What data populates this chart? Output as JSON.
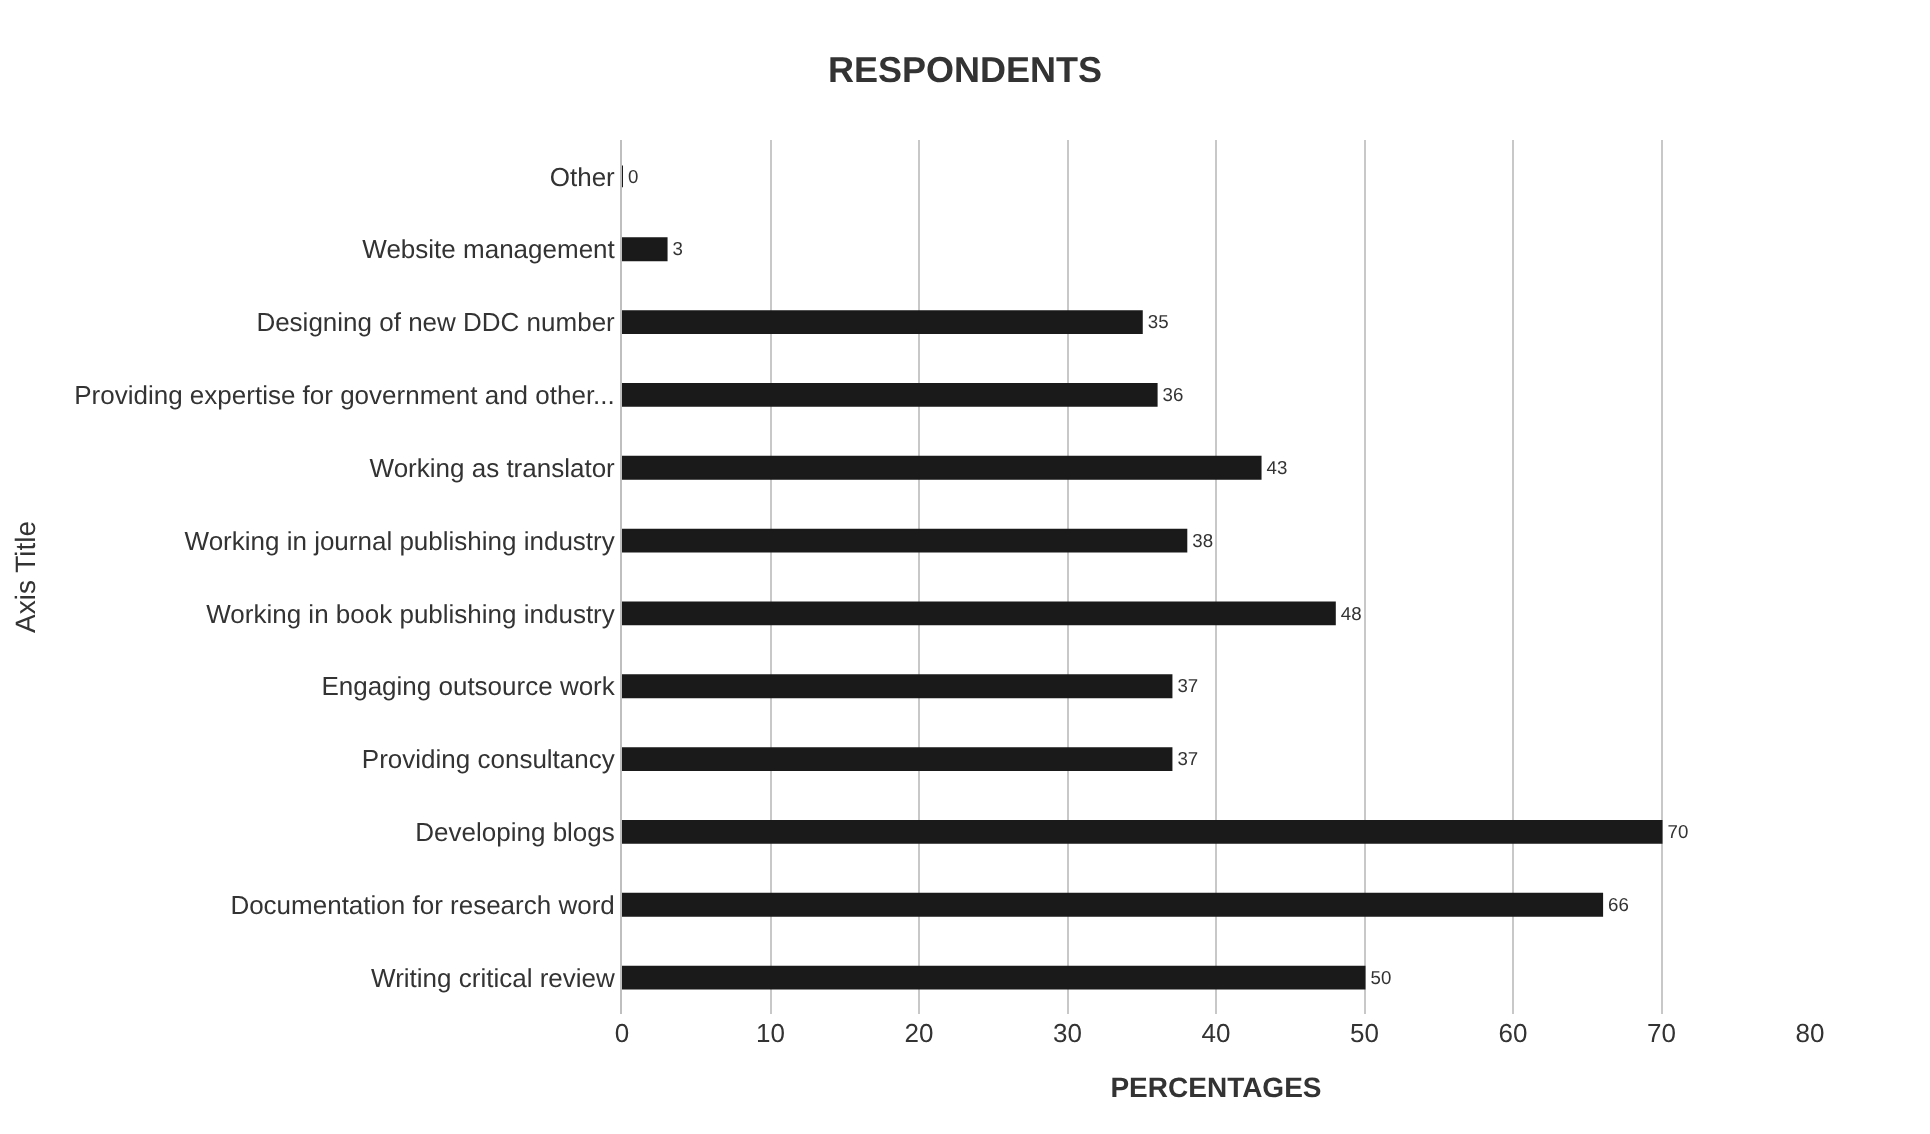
{
  "chart_data": {
    "type": "bar",
    "orientation": "horizontal",
    "title": "RESPONDENTS",
    "xlabel": "PERCENTAGES",
    "ylabel": "Axis Title",
    "categories": [
      "Other",
      "Website management",
      "Designing of new DDC number",
      "Providing expertise for government and other...",
      "Working as translator",
      "Working in journal publishing industry",
      "Working in book publishing industry",
      "Engaging outsource work",
      "Providing consultancy",
      "Developing blogs",
      "Documentation for research word",
      "Writing critical review"
    ],
    "values": [
      0,
      3,
      35,
      36,
      43,
      38,
      48,
      37,
      37,
      70,
      66,
      50
    ],
    "color": "#1a1a1a",
    "xlim": [
      0,
      80
    ],
    "xticks": [
      0,
      10,
      20,
      30,
      40,
      50,
      60,
      70,
      80
    ],
    "grid": "x",
    "data_labels": true
  }
}
